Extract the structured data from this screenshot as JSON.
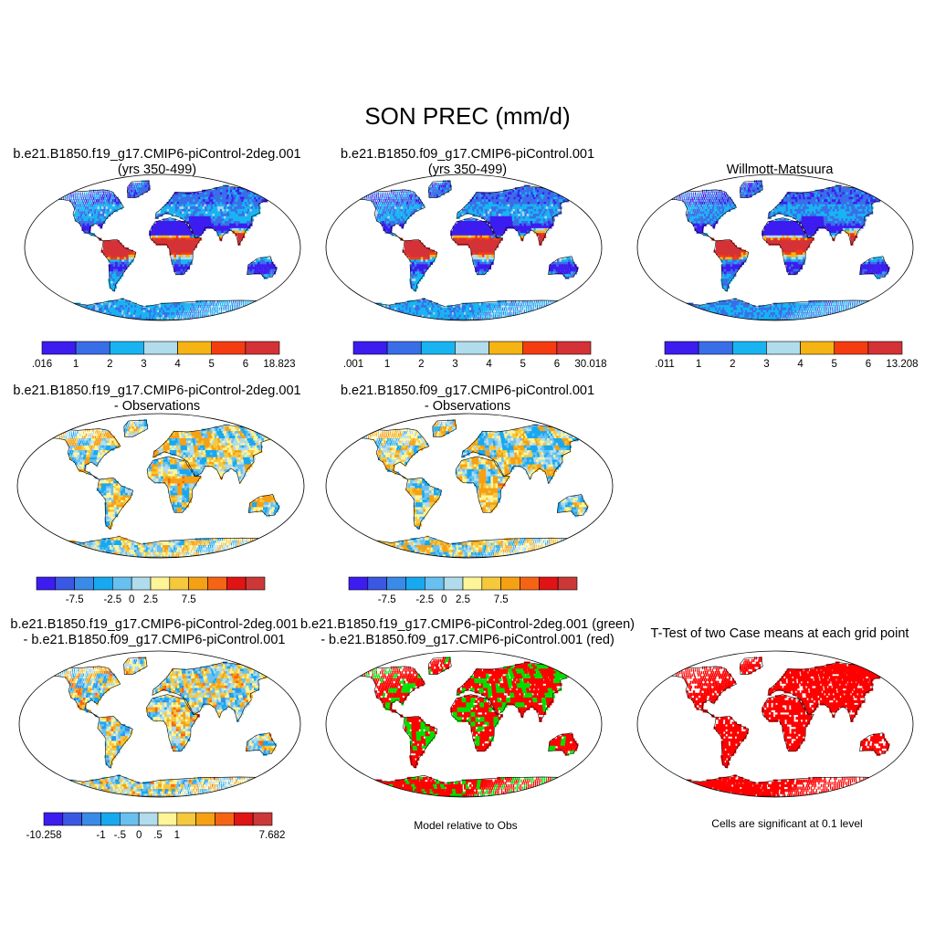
{
  "figure_title": "SON PREC (mm/d)",
  "colors": {
    "ocean": "#ffffff",
    "outline": "#000000",
    "abs_scale": [
      "#3d1cf0",
      "#3a6ee8",
      "#18b4f2",
      "#b0dcec",
      "#f6b414",
      "#f53c10",
      "#d43236"
    ],
    "diff_scale": [
      "#3d1cf0",
      "#3a58e4",
      "#3a8ae8",
      "#18a8f0",
      "#68c0f0",
      "#b0dcec",
      "#fef498",
      "#f6c83c",
      "#f6a014",
      "#f56414",
      "#e01414",
      "#cc3838"
    ],
    "model_diff_scale": [
      "#3d1cf0",
      "#3a58e4",
      "#3a8ae8",
      "#18a8f0",
      "#68c0f0",
      "#b0dcec",
      "#fef498",
      "#f6c83c",
      "#f6a014",
      "#f56414",
      "#e01414",
      "#cc3838"
    ],
    "green": "#00e000",
    "red": "#ff0000"
  },
  "panels": [
    {
      "id": "p1",
      "title_line1": "b.e21.B1850.f19_g17.CMIP6-piControl-2deg.001",
      "title_line2": "(yrs 350-499)",
      "kind": "abs",
      "colorbar": {
        "labels": [
          ".016",
          "1",
          "2",
          "3",
          "4",
          "5",
          "6",
          "18.823"
        ]
      }
    },
    {
      "id": "p2",
      "title_line1": "b.e21.B1850.f09_g17.CMIP6-piControl.001",
      "title_line2": "(yrs 350-499)",
      "kind": "abs",
      "colorbar": {
        "labels": [
          ".001",
          "1",
          "2",
          "3",
          "4",
          "5",
          "6",
          "30.018"
        ]
      }
    },
    {
      "id": "p3",
      "title_line1": "Willmott-Matsuura",
      "title_line2": "",
      "kind": "abs",
      "colorbar": {
        "labels": [
          ".011",
          "1",
          "2",
          "3",
          "4",
          "5",
          "6",
          "13.208"
        ]
      }
    },
    {
      "id": "p4",
      "title_line1": "b.e21.B1850.f19_g17.CMIP6-piControl-2deg.001",
      "title_line2": "- Observations",
      "kind": "diff",
      "colorbar": {
        "labels": [
          "-7.5",
          "-2.5",
          "0",
          "2.5",
          "7.5"
        ]
      }
    },
    {
      "id": "p5",
      "title_line1": "b.e21.B1850.f09_g17.CMIP6-piControl.001",
      "title_line2": "- Observations",
      "kind": "diff",
      "colorbar": {
        "labels": [
          "-7.5",
          "-2.5",
          "0",
          "2.5",
          "7.5"
        ]
      }
    },
    {
      "id": "p6",
      "title_line1": "b.e21.B1850.f19_g17.CMIP6-piControl-2deg.001",
      "title_line2": "- b.e21.B1850.f09_g17.CMIP6-piControl.001",
      "kind": "modeldiff",
      "colorbar": {
        "labels": [
          "-10.258",
          "-1",
          "-.5",
          "0",
          ".5",
          "1",
          "7.682"
        ]
      }
    },
    {
      "id": "p7",
      "title_line1": "b.e21.B1850.f19_g17.CMIP6-piControl-2deg.001 (green)",
      "title_line2": "- b.e21.B1850.f09_g17.CMIP6-piControl.001 (red)",
      "kind": "relative",
      "caption": "Model relative to Obs"
    },
    {
      "id": "p8",
      "title_line1": "T-Test of two Case means at each grid point",
      "title_line2": "",
      "kind": "ttest",
      "caption": "Cells are significant at 0.1 level"
    }
  ]
}
